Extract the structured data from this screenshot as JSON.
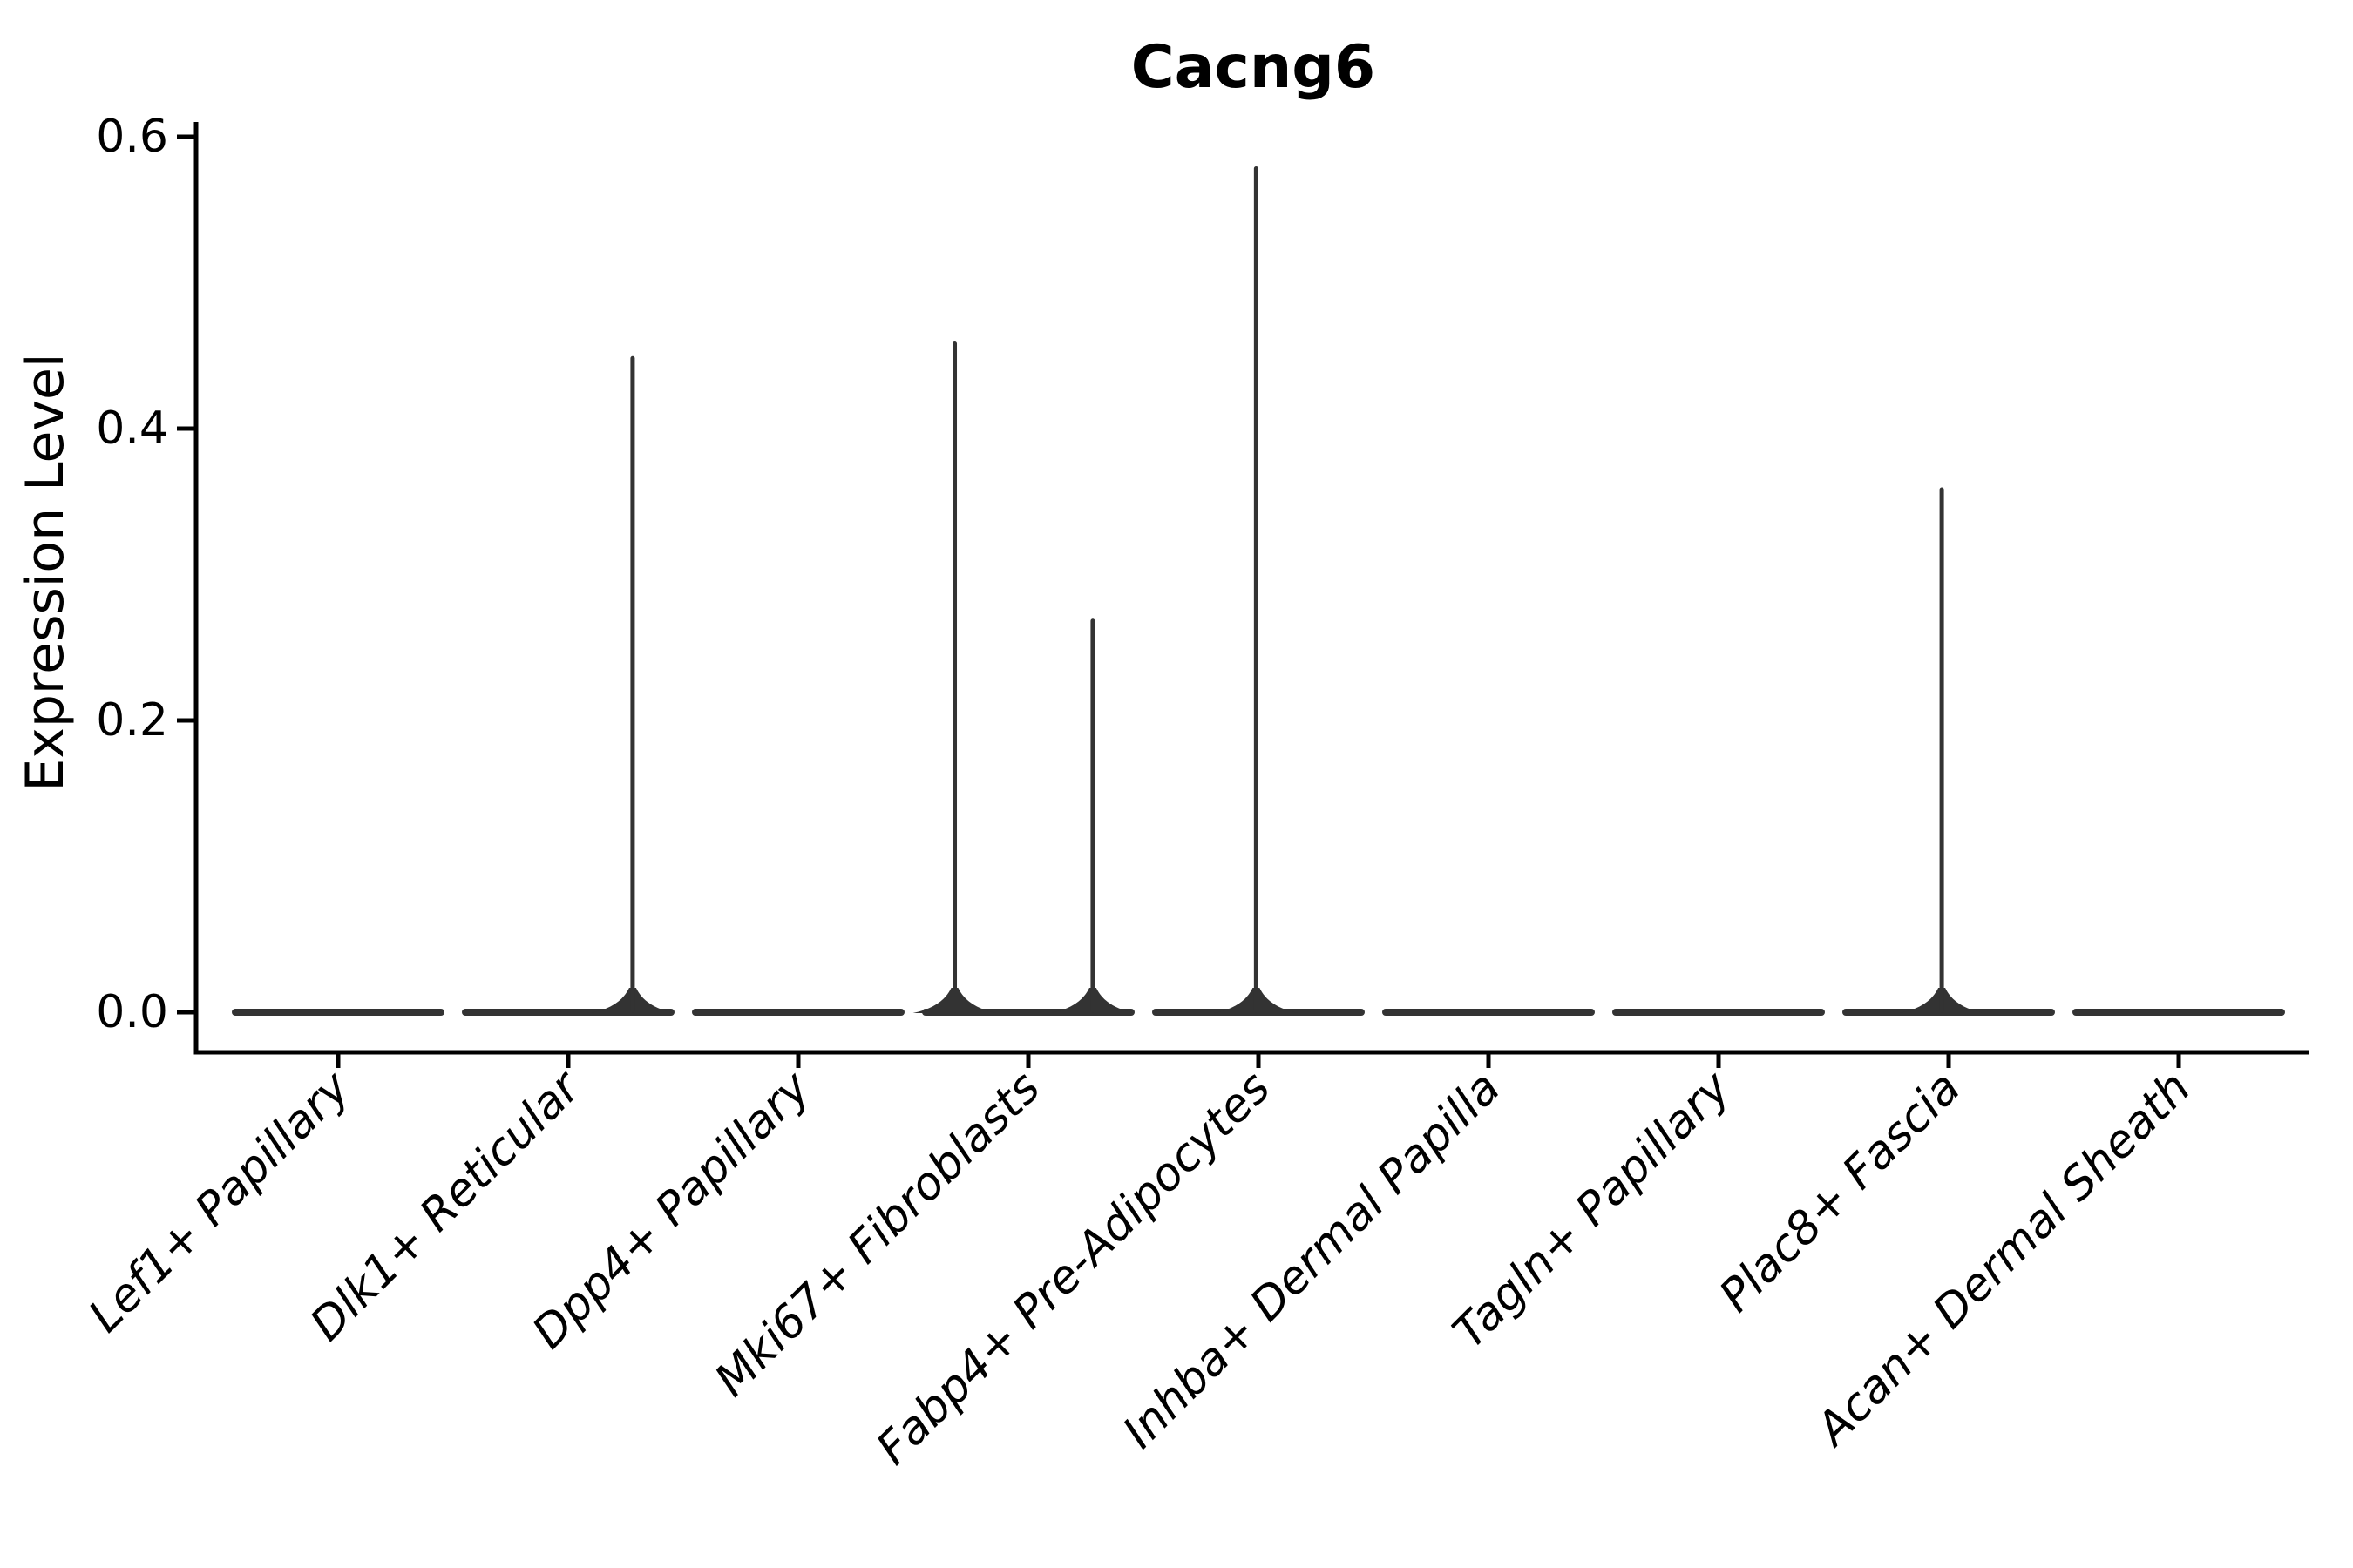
{
  "title": "Cacng6",
  "axes": {
    "ylabel": "Expression Level",
    "xlabel": ""
  },
  "style": {
    "violin_color": "#333333",
    "axis_color": "#000000",
    "text_color": "#000000",
    "background": "#ffffff"
  },
  "chart_data": {
    "type": "violin",
    "title": "Cacng6",
    "xlabel": "",
    "ylabel": "Expression Level",
    "ylim": [
      0.0,
      0.6
    ],
    "yticks": [
      0.0,
      0.2,
      0.4,
      0.6
    ],
    "ytick_labels": [
      "0.0",
      "0.2",
      "0.4",
      "0.6"
    ],
    "grid": false,
    "legend": false,
    "categories": [
      "Lef1+ Papillary",
      "Dlk1+ Reticular",
      "Dpp4+ Papillary",
      "Mki67+ Fibroblasts",
      "Fabp4+ Pre-Adipocytes",
      "Inhba+ Dermal Papilla",
      "Tagln+ Papillary",
      "Plac8+ Fascia",
      "Acan+ Dermal Sheath"
    ],
    "violins": [
      {
        "category": "Lef1+ Papillary",
        "body": "flat-at-zero",
        "baseline_value": 0.0,
        "spikes": []
      },
      {
        "category": "Dlk1+ Reticular",
        "body": "flat-at-zero",
        "baseline_value": 0.0,
        "spikes": [
          {
            "offset_frac": 0.28,
            "value": 0.45
          }
        ]
      },
      {
        "category": "Dpp4+ Papillary",
        "body": "flat-at-zero",
        "baseline_value": 0.0,
        "spikes": []
      },
      {
        "category": "Mki67+ Fibroblasts",
        "body": "flat-at-zero",
        "baseline_value": 0.0,
        "spikes": [
          {
            "offset_frac": -0.32,
            "value": 0.46
          },
          {
            "offset_frac": 0.28,
            "value": 0.27
          }
        ]
      },
      {
        "category": "Fabp4+ Pre-Adipocytes",
        "body": "flat-at-zero",
        "baseline_value": 0.0,
        "spikes": [
          {
            "offset_frac": -0.01,
            "value": 0.58
          }
        ]
      },
      {
        "category": "Inhba+ Dermal Papilla",
        "body": "flat-at-zero",
        "baseline_value": 0.0,
        "spikes": []
      },
      {
        "category": "Tagln+ Papillary",
        "body": "flat-at-zero",
        "baseline_value": 0.0,
        "spikes": []
      },
      {
        "category": "Plac8+ Fascia",
        "body": "flat-at-zero",
        "baseline_value": 0.0,
        "spikes": [
          {
            "offset_frac": -0.03,
            "value": 0.36
          }
        ]
      },
      {
        "category": "Acan+ Dermal Sheath",
        "body": "flat-at-zero",
        "baseline_value": 0.0,
        "spikes": []
      }
    ]
  }
}
